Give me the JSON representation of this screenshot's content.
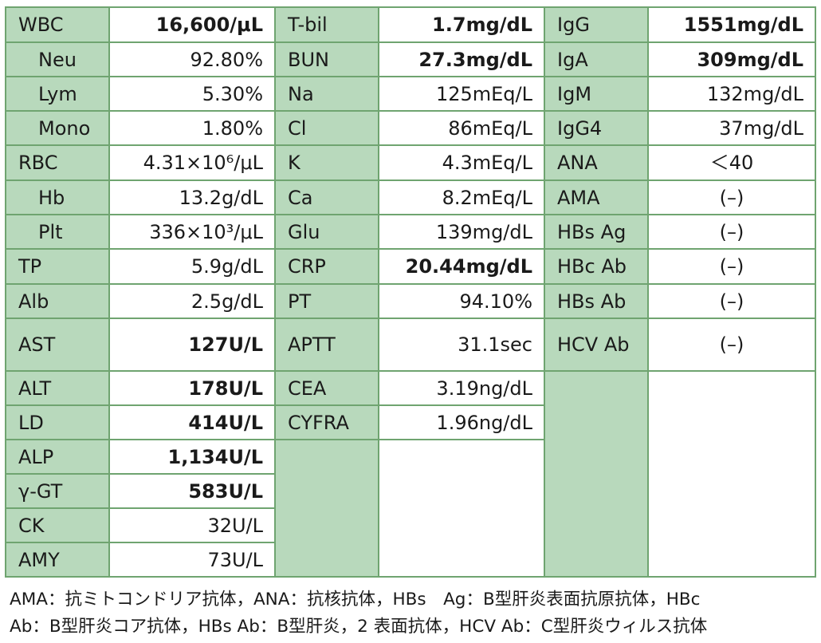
{
  "table": {
    "rows": [
      {
        "c1": {
          "name": "WBC",
          "value": "16,600/μL",
          "bold": true
        },
        "c2": {
          "name": "T-bil",
          "value": "1.7mg/dL",
          "bold": true
        },
        "c3": {
          "name": "IgG",
          "value": "1551mg/dL",
          "bold": true
        }
      },
      {
        "c1": {
          "name": "Neu",
          "value": "92.80%",
          "indent": true
        },
        "c2": {
          "name": "BUN",
          "value": "27.3mg/dL",
          "bold": true
        },
        "c3": {
          "name": "IgA",
          "value": "309mg/dL",
          "bold": true
        }
      },
      {
        "c1": {
          "name": "Lym",
          "value": "5.30%",
          "indent": true
        },
        "c2": {
          "name": "Na",
          "value": "125mEq/L"
        },
        "c3": {
          "name": "IgM",
          "value": "132mg/dL"
        }
      },
      {
        "c1": {
          "name": "Mono",
          "value": "1.80%",
          "indent": true
        },
        "c2": {
          "name": "Cl",
          "value": "86mEq/L"
        },
        "c3": {
          "name": "IgG4",
          "value": "37mg/dL"
        }
      },
      {
        "c1": {
          "name": "RBC",
          "value": "4.31×10⁶/μL"
        },
        "c2": {
          "name": "K",
          "value": "4.3mEq/L"
        },
        "c3": {
          "name": "ANA",
          "value": "＜40",
          "center": true
        }
      },
      {
        "c1": {
          "name": "Hb",
          "value": "13.2g/dL",
          "indent": true
        },
        "c2": {
          "name": "Ca",
          "value": "8.2mEq/L"
        },
        "c3": {
          "name": "AMA",
          "value": "(–)",
          "center": true
        }
      },
      {
        "c1": {
          "name": "Plt",
          "value": "336×10³/μL",
          "indent": true
        },
        "c2": {
          "name": "Glu",
          "value": "139mg/dL"
        },
        "c3": {
          "name": "HBs Ag",
          "value": "(–)",
          "center": true
        }
      },
      {
        "c1": {
          "name": "TP",
          "value": "5.9g/dL"
        },
        "c2": {
          "name": "CRP",
          "value": "20.44mg/dL",
          "bold": true
        },
        "c3": {
          "name": "HBc Ab",
          "value": "(–)",
          "center": true
        }
      },
      {
        "c1": {
          "name": "Alb",
          "value": "2.5g/dL"
        },
        "c2": {
          "name": "PT",
          "value": "94.10%"
        },
        "c3": {
          "name": "HBs Ab",
          "value": "(–)",
          "center": true
        }
      },
      {
        "c1": {
          "name": "AST",
          "value": "127U/L",
          "bold": true
        },
        "c2": {
          "name": "APTT",
          "value": "31.1sec"
        },
        "c3": {
          "name": "HCV Ab",
          "value": "(–)",
          "center": true,
          "wrap": true
        }
      },
      {
        "c1": {
          "name": "ALT",
          "value": "178U/L",
          "bold": true
        },
        "c2": {
          "name": "CEA",
          "value": "3.19ng/dL"
        }
      },
      {
        "c1": {
          "name": "LD",
          "value": "414U/L",
          "bold": true
        },
        "c2": {
          "name": "CYFRA",
          "value": "1.96ng/dL"
        }
      },
      {
        "c1": {
          "name": "ALP",
          "value": "1,134U/L",
          "bold": true
        }
      },
      {
        "c1": {
          "name": "γ-GT",
          "value": "583U/L",
          "bold": true
        }
      },
      {
        "c1": {
          "name": "CK",
          "value": "32U/L"
        }
      },
      {
        "c1": {
          "name": "AMY",
          "value": "73U/L"
        }
      }
    ]
  },
  "footnote": {
    "line1": "AMA：抗ミトコンドリア抗体，ANA：抗核抗体，HBs　Ag：B型肝炎表面抗原抗体，HBc",
    "line2": "Ab：B型肝炎コア抗体，HBs Ab：B型肝炎，2 表面抗体，HCV Ab：C型肝炎ウィルス抗体"
  },
  "colors": {
    "header_cell": "#b8d9bc",
    "border": "#6fa470",
    "value_cell": "#ffffff"
  }
}
